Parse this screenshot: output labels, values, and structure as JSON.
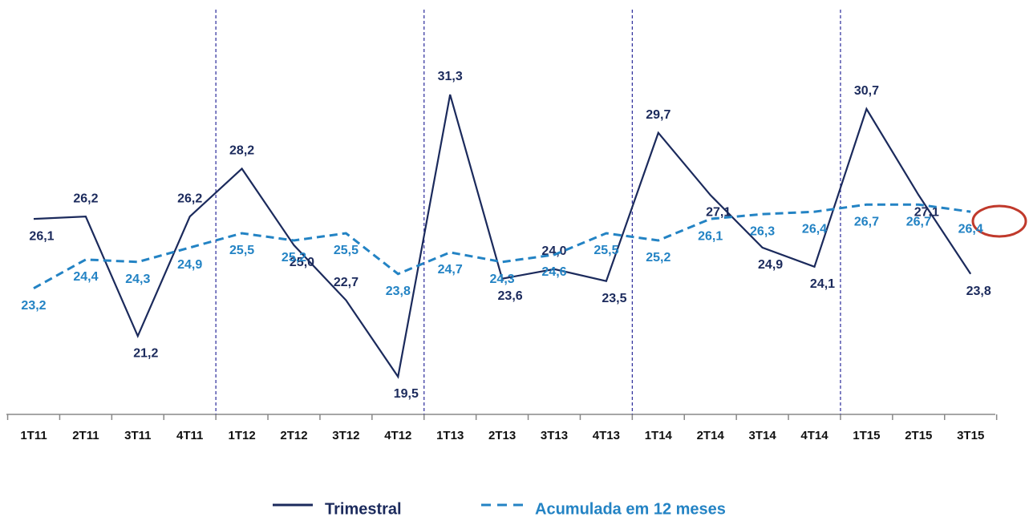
{
  "chart_data": {
    "type": "line",
    "categories": [
      "1T11",
      "2T11",
      "3T11",
      "4T11",
      "1T12",
      "2T12",
      "3T12",
      "4T12",
      "1T13",
      "2T13",
      "3T13",
      "4T13",
      "1T14",
      "2T14",
      "3T14",
      "4T14",
      "1T15",
      "2T15",
      "3T15"
    ],
    "series": [
      {
        "name": "Trimestral",
        "color": "#1b2a5c",
        "values": [
          26.1,
          26.2,
          21.2,
          26.2,
          28.2,
          25.0,
          22.7,
          19.5,
          31.3,
          23.6,
          24.0,
          23.5,
          29.7,
          27.1,
          24.9,
          24.1,
          30.7,
          27.1,
          23.8
        ],
        "value_labels": [
          "26,1",
          "26,2",
          "21,2",
          "26,2",
          "28,2",
          "25,0",
          "22,7",
          "19,5",
          "31,3",
          "23,6",
          "24,0",
          "23,5",
          "29,7",
          "27,1",
          "24,9",
          "24,1",
          "30,7",
          "27,1",
          "23,8"
        ]
      },
      {
        "name": "Acumulada em 12 meses",
        "color": "#2383c4",
        "values": [
          23.2,
          24.4,
          24.3,
          24.9,
          25.5,
          25.2,
          25.5,
          23.8,
          24.7,
          24.3,
          24.6,
          25.5,
          25.2,
          26.1,
          26.3,
          26.4,
          26.7,
          26.7,
          26.4
        ],
        "value_labels": [
          "23,2",
          "24,4",
          "24,3",
          "24,9",
          "25,5",
          "25,2",
          "25,5",
          "23,8",
          "24,7",
          "24,3",
          "24,6",
          "25,5",
          "25,2",
          "26,1",
          "26,3",
          "26,4",
          "26,7",
          "26,7",
          "26,4"
        ]
      }
    ]
  }
}
